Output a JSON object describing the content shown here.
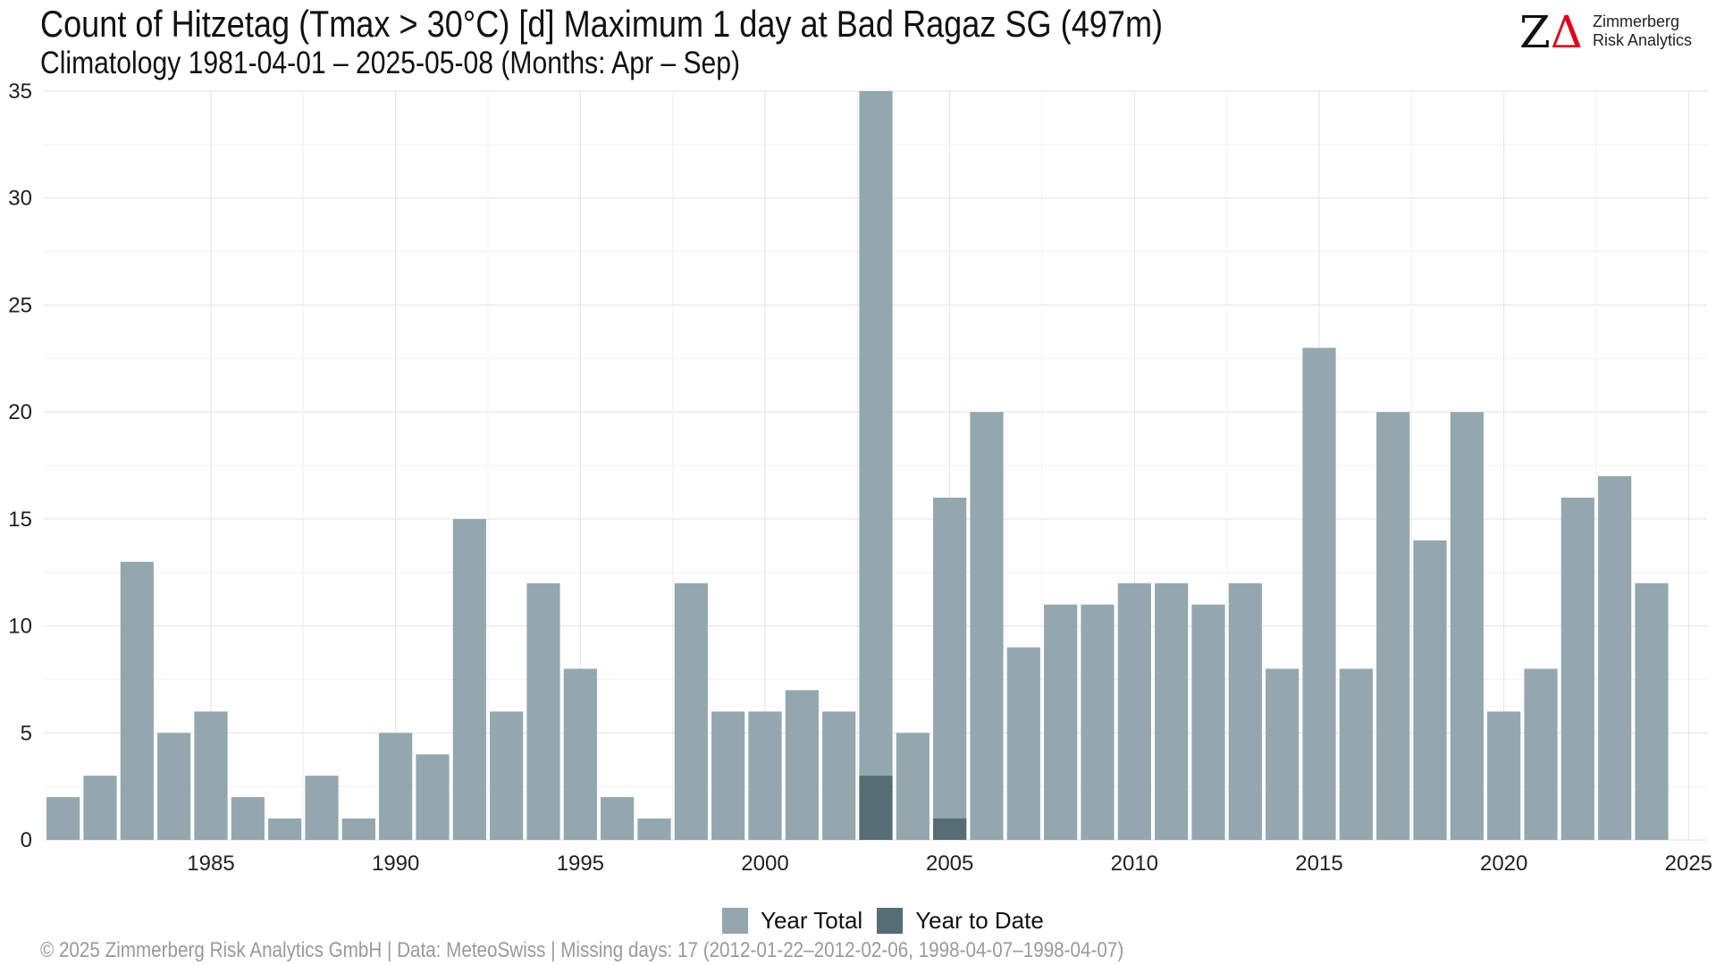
{
  "header": {
    "title": "Count of Hitzetag (Tmax > 30°C) [d] Maximum 1 day at Bad Ragaz  SG (497m)",
    "subtitle": "Climatology 1981-04-01 – 2025-05-08 (Months: Apr – Sep)"
  },
  "logo": {
    "mark_z": "Z",
    "mark_delta": "Δ",
    "line1": "Zimmerberg",
    "line2": "Risk Analytics"
  },
  "caption": "©  2025 Zimmerberg Risk Analytics GmbH | Data: MeteoSwiss | Missing days: 17 (2012-01-22–2012-02-06, 1998-04-07–1998-04-07)",
  "colors": {
    "year_total": "#94a7ae",
    "year_to_date": "#566d75",
    "grid": "#e2e2e2"
  },
  "chart_data": {
    "type": "bar",
    "x": [
      1981,
      1982,
      1983,
      1984,
      1985,
      1986,
      1987,
      1988,
      1989,
      1990,
      1991,
      1992,
      1993,
      1994,
      1995,
      1996,
      1997,
      1998,
      1999,
      2000,
      2001,
      2002,
      2003,
      2004,
      2005,
      2006,
      2007,
      2008,
      2009,
      2010,
      2011,
      2012,
      2013,
      2014,
      2015,
      2016,
      2017,
      2018,
      2019,
      2020,
      2021,
      2022,
      2023,
      2024
    ],
    "series": [
      {
        "name": "Year Total",
        "values": [
          2,
          3,
          13,
          5,
          6,
          2,
          1,
          3,
          1,
          5,
          4,
          15,
          6,
          12,
          8,
          2,
          1,
          12,
          6,
          6,
          7,
          6,
          35,
          5,
          16,
          20,
          9,
          11,
          11,
          12,
          12,
          11,
          12,
          8,
          23,
          8,
          20,
          14,
          20,
          6,
          8,
          16,
          17,
          12
        ]
      },
      {
        "name": "Year to Date",
        "values": [
          0,
          0,
          0,
          0,
          0,
          0,
          0,
          0,
          0,
          0,
          0,
          0,
          0,
          0,
          0,
          0,
          0,
          0,
          0,
          0,
          0,
          0,
          3,
          0,
          1,
          0,
          0,
          0,
          0,
          0,
          0,
          0,
          0,
          0,
          0,
          0,
          0,
          0,
          0,
          0,
          0,
          0,
          0,
          0
        ]
      }
    ],
    "xticks": [
      1985,
      1990,
      1995,
      2000,
      2005,
      2010,
      2015,
      2020,
      2025
    ],
    "yticks": [
      0,
      5,
      10,
      15,
      20,
      25,
      30,
      35
    ],
    "xlim": [
      1980.5,
      2025.5
    ],
    "ylim": [
      0,
      35
    ],
    "grid": true,
    "legend": "bottom-center"
  }
}
